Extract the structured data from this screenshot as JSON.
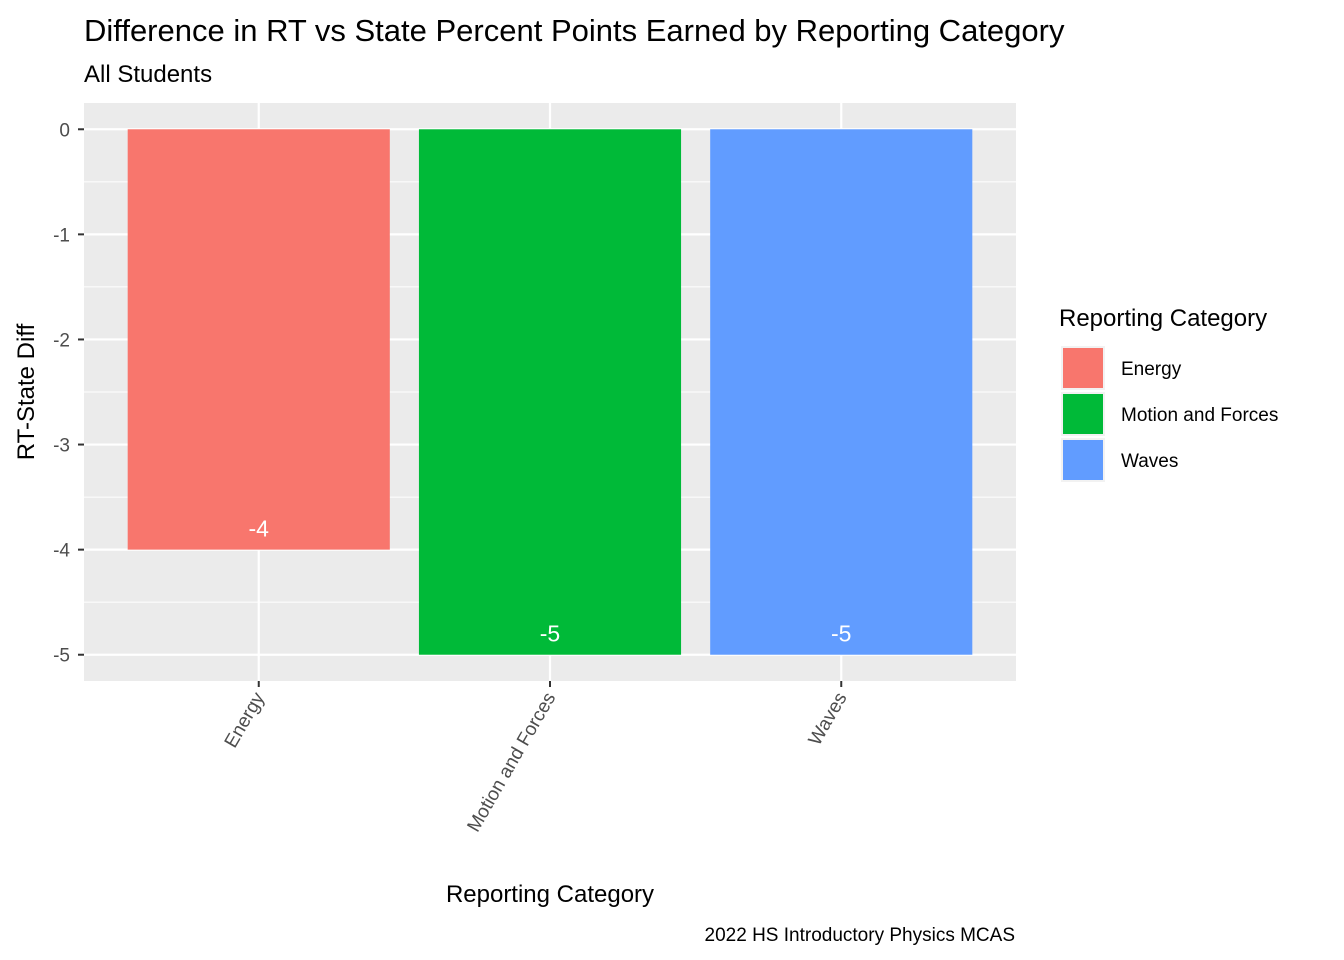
{
  "chart_data": {
    "type": "bar",
    "title": "Difference in RT vs State Percent Points Earned by Reporting Category",
    "subtitle": "All Students",
    "caption": "2022 HS Introductory Physics MCAS",
    "xlabel": "Reporting Category",
    "ylabel": "RT-State Diff",
    "categories": [
      "Energy",
      "Motion and Forces",
      "Waves"
    ],
    "values": [
      -4,
      -5,
      -5
    ],
    "data_labels": [
      "-4",
      "-5",
      "-5"
    ],
    "colors": [
      "#F8766D",
      "#00BA38",
      "#619CFF"
    ],
    "ylim": [
      -5.25,
      0.25
    ],
    "yticks": [
      0,
      -1,
      -2,
      -3,
      -4,
      -5
    ],
    "ytick_labels": [
      "0",
      "-1",
      "-2",
      "-3",
      "-4",
      "-5"
    ],
    "grid": true,
    "legend": {
      "title": "Reporting Category",
      "position": "right",
      "entries": [
        "Energy",
        "Motion and Forces",
        "Waves"
      ]
    },
    "panel_background": "#EBEBEB",
    "x_tick_rotation": "-60deg"
  }
}
